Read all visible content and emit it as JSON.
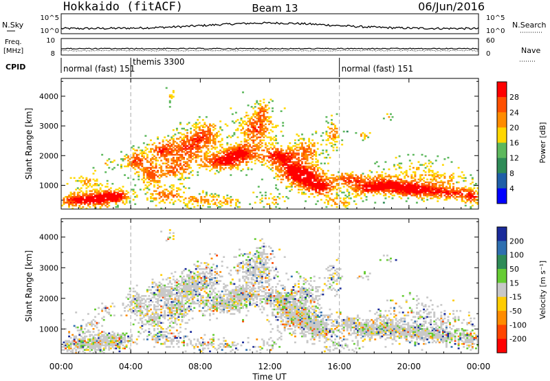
{
  "header": {
    "station": "Hokkaido (fitACF)",
    "beam": "Beam 13",
    "date": "06/Jun/2016"
  },
  "aux_panels": {
    "nsky_label": "N.Sky",
    "nsky_ticks": [
      "10^5",
      "10^0"
    ],
    "nsearch_label": "N.Search",
    "nsearch_ticks": [
      "10^5",
      "10^0"
    ],
    "freq_label": "Freq.",
    "freq_unit": "[MHz]",
    "freq_ticks": [
      "10",
      "8"
    ],
    "nave_label": "Nave",
    "nave_ticks": [
      "60",
      "0"
    ],
    "cpid_label": "CPID",
    "cpid_entries": [
      {
        "text": "normal (fast) 151",
        "start_hour": 0
      },
      {
        "text": "themis 3300",
        "start_hour": 4
      },
      {
        "text": "normal (fast) 151",
        "start_hour": 16
      }
    ]
  },
  "chart_data": [
    {
      "type": "heatmap",
      "name": "power",
      "ylabel": "Slant Range [km]",
      "xlabel": "Time UT",
      "xlim": [
        0,
        24
      ],
      "ylim": [
        200,
        4600
      ],
      "x_tick_labels": [
        "00:00",
        "04:00",
        "08:00",
        "12:00",
        "16:00",
        "20:00",
        "00:00"
      ],
      "x_ticks": [
        0,
        4,
        8,
        12,
        16,
        20,
        24
      ],
      "y_ticks": [
        1000,
        2000,
        3000,
        4000
      ],
      "colorbar": {
        "label": "Power [dB]",
        "tick_labels": [
          "4",
          "8",
          "12",
          "16",
          "20",
          "24",
          "28"
        ],
        "colors": [
          "#0000ff",
          "#1f5fa8",
          "#2e8b57",
          "#5db85d",
          "#ffd700",
          "#ff8c00",
          "#ff5000",
          "#ff0000"
        ]
      },
      "mode_change_hours": [
        4,
        16
      ]
    },
    {
      "type": "heatmap",
      "name": "velocity",
      "ylabel": "Slant Range [km]",
      "xlabel": "Time UT",
      "xlim": [
        0,
        24
      ],
      "ylim": [
        200,
        4600
      ],
      "x_tick_labels": [
        "00:00",
        "04:00",
        "08:00",
        "12:00",
        "16:00",
        "20:00",
        "00:00"
      ],
      "x_ticks": [
        0,
        4,
        8,
        12,
        16,
        20,
        24
      ],
      "y_ticks": [
        1000,
        2000,
        3000,
        4000
      ],
      "colorbar": {
        "label": "Velocity [m s⁻¹]",
        "tick_labels": [
          "200",
          "100",
          "50",
          "15",
          "-15",
          "-50",
          "-100",
          "-200"
        ],
        "colors": [
          "#1a2a9a",
          "#2e6fb0",
          "#2e8b57",
          "#66cc33",
          "#c8c8c8",
          "#ffcc00",
          "#ff8c00",
          "#ff4500",
          "#ff0000"
        ]
      },
      "mode_change_hours": [
        4,
        16
      ]
    }
  ],
  "colors": {
    "axis": "#000000",
    "dashed_line": "#aaaaaa",
    "background": "#ffffff"
  }
}
